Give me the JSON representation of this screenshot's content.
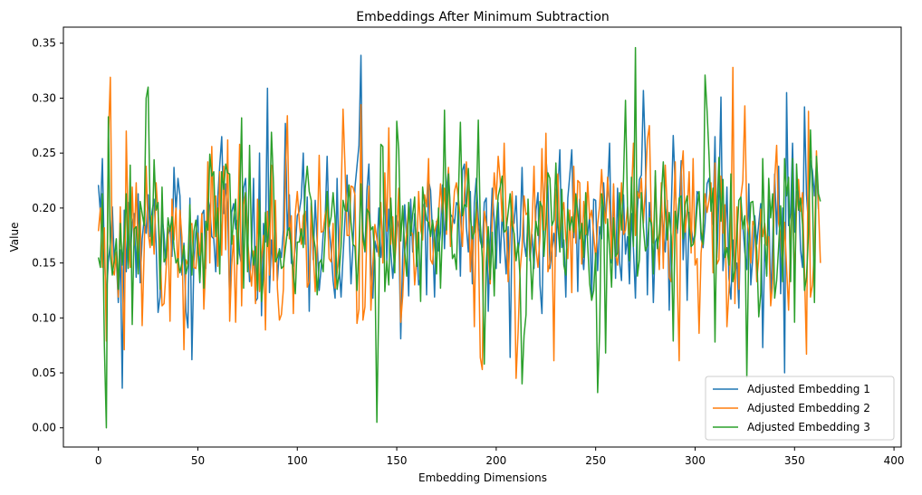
{
  "chart_data": {
    "type": "line",
    "title": "Embeddings After Minimum Subtraction",
    "xlabel": "Embedding Dimensions",
    "ylabel": "Value",
    "xlim": [
      -17.6,
      403.6
    ],
    "ylim": [
      -0.0175,
      0.3646
    ],
    "xticks": [
      0,
      50,
      100,
      150,
      200,
      250,
      300,
      350,
      400
    ],
    "yticks": [
      0.0,
      0.05,
      0.1,
      0.15,
      0.2,
      0.25,
      0.3,
      0.35
    ],
    "ytick_labels": [
      "0.00",
      "0.05",
      "0.10",
      "0.15",
      "0.20",
      "0.25",
      "0.30",
      "0.35"
    ],
    "grid": false,
    "legend_position": "bottom-right",
    "n_points": 384,
    "series": [
      {
        "name": "Adjusted Embedding 1",
        "color": "#1f77b4",
        "values": [
          0.221,
          0.196,
          0.245,
          0.154,
          0.119,
          0.151,
          0.168,
          0.201,
          0.15,
          0.154,
          0.114,
          0.162,
          0.036,
          0.198,
          0.142,
          0.205,
          0.153,
          0.186,
          0.195,
          0.137,
          0.213,
          0.132,
          0.172,
          0.19,
          0.177,
          0.212,
          0.174,
          0.197,
          0.208,
          0.168,
          0.105,
          0.119,
          0.192,
          0.176,
          0.148,
          0.175,
          0.183,
          0.156,
          0.237,
          0.197,
          0.227,
          0.211,
          0.139,
          0.168,
          0.106,
          0.091,
          0.209,
          0.062,
          0.151,
          0.178,
          0.193,
          0.132,
          0.194,
          0.198,
          0.145,
          0.209,
          0.201,
          0.174,
          0.172,
          0.142,
          0.209,
          0.239,
          0.265,
          0.195,
          0.222,
          0.198,
          0.113,
          0.196,
          0.204,
          0.181,
          0.189,
          0.158,
          0.148,
          0.218,
          0.227,
          0.172,
          0.133,
          0.161,
          0.227,
          0.115,
          0.118,
          0.25,
          0.102,
          0.186,
          0.169,
          0.309,
          0.123,
          0.171,
          0.142,
          0.197,
          0.134,
          0.163,
          0.155,
          0.18,
          0.277,
          0.175,
          0.212,
          0.15,
          0.147,
          0.164,
          0.193,
          0.197,
          0.209,
          0.25,
          0.167,
          0.21,
          0.106,
          0.205,
          0.153,
          0.207,
          0.168,
          0.125,
          0.146,
          0.176,
          0.19,
          0.247,
          0.181,
          0.162,
          0.134,
          0.118,
          0.227,
          0.148,
          0.119,
          0.156,
          0.191,
          0.23,
          0.182,
          0.131,
          0.166,
          0.219,
          0.238,
          0.257,
          0.339,
          0.179,
          0.16,
          0.216,
          0.24,
          0.15,
          0.118,
          0.17,
          0.16,
          0.2,
          0.155,
          0.173,
          0.214,
          0.152,
          0.199,
          0.16,
          0.136,
          0.16,
          0.193,
          0.182,
          0.081,
          0.157,
          0.203,
          0.171,
          0.12,
          0.208,
          0.16,
          0.195,
          0.166,
          0.13,
          0.137,
          0.201,
          0.205,
          0.121,
          0.225,
          0.216,
          0.177,
          0.119,
          0.188,
          0.161,
          0.178,
          0.221,
          0.163,
          0.217,
          0.235,
          0.194,
          0.192,
          0.186,
          0.205,
          0.202,
          0.138,
          0.234,
          0.24,
          0.183,
          0.16,
          0.215,
          0.131,
          0.205,
          0.227,
          0.191,
          0.17,
          0.164,
          0.205,
          0.209,
          0.106,
          0.172,
          0.218,
          0.188,
          0.145,
          0.205,
          0.15,
          0.196,
          0.17,
          0.14,
          0.183,
          0.064,
          0.188,
          0.186,
          0.211,
          0.16,
          0.175,
          0.237,
          0.169,
          0.156,
          0.19,
          0.152,
          0.176,
          0.145,
          0.198,
          0.214,
          0.13,
          0.104,
          0.199,
          0.247,
          0.219,
          0.145,
          0.16,
          0.177,
          0.156,
          0.215,
          0.253,
          0.164,
          0.171,
          0.119,
          0.209,
          0.23,
          0.253,
          0.173,
          0.213,
          0.124,
          0.208,
          0.163,
          0.144,
          0.177,
          0.175,
          0.193,
          0.117,
          0.208,
          0.207,
          0.143,
          0.183,
          0.172,
          0.223,
          0.188,
          0.215,
          0.259,
          0.15,
          0.22,
          0.136,
          0.218,
          0.151,
          0.134,
          0.212,
          0.158,
          0.174,
          0.131,
          0.195,
          0.163,
          0.118,
          0.199,
          0.226,
          0.23,
          0.307,
          0.249,
          0.121,
          0.205,
          0.183,
          0.114,
          0.169,
          0.174,
          0.148,
          0.205,
          0.176,
          0.16,
          0.207,
          0.107,
          0.197,
          0.266,
          0.22,
          0.177,
          0.2,
          0.243,
          0.153,
          0.198,
          0.116,
          0.196,
          0.184,
          0.168,
          0.178,
          0.215,
          0.212,
          0.172,
          0.164,
          0.186,
          0.222,
          0.227,
          0.203,
          0.185,
          0.265,
          0.155,
          0.213,
          0.301,
          0.143,
          0.167,
          0.219,
          0.136,
          0.117,
          0.171,
          0.141,
          0.15,
          0.109,
          0.198,
          0.184,
          0.16,
          0.144,
          0.222,
          0.13,
          0.155,
          0.193,
          0.167,
          0.186,
          0.204,
          0.073,
          0.167,
          0.14,
          0.208,
          0.116,
          0.17,
          0.231,
          0.176,
          0.238,
          0.122,
          0.2,
          0.05,
          0.305,
          0.184,
          0.195,
          0.259,
          0.178,
          0.213,
          0.219,
          0.162,
          0.146,
          0.292,
          0.212,
          0.185,
          0.243,
          0.234,
          0.211,
          0.241,
          0.199
        ],
        "note_none": ""
      },
      {
        "name": "Adjusted Embedding 2",
        "color": "#ff7f0e",
        "values": [
          0.179,
          0.2,
          0.146,
          0.182,
          0.079,
          0.262,
          0.319,
          0.145,
          0.139,
          0.16,
          0.119,
          0.201,
          0.136,
          0.071,
          0.27,
          0.175,
          0.146,
          0.219,
          0.166,
          0.223,
          0.159,
          0.197,
          0.093,
          0.16,
          0.238,
          0.178,
          0.164,
          0.193,
          0.158,
          0.223,
          0.195,
          0.166,
          0.111,
          0.113,
          0.143,
          0.182,
          0.097,
          0.208,
          0.171,
          0.2,
          0.137,
          0.198,
          0.173,
          0.071,
          0.153,
          0.148,
          0.184,
          0.186,
          0.146,
          0.145,
          0.177,
          0.157,
          0.195,
          0.108,
          0.15,
          0.242,
          0.15,
          0.256,
          0.173,
          0.211,
          0.147,
          0.233,
          0.157,
          0.238,
          0.162,
          0.262,
          0.097,
          0.147,
          0.175,
          0.096,
          0.176,
          0.258,
          0.111,
          0.203,
          0.214,
          0.173,
          0.147,
          0.129,
          0.161,
          0.113,
          0.208,
          0.124,
          0.155,
          0.175,
          0.089,
          0.197,
          0.139,
          0.239,
          0.134,
          0.207,
          0.127,
          0.098,
          0.103,
          0.126,
          0.23,
          0.284,
          0.172,
          0.193,
          0.104,
          0.195,
          0.215,
          0.188,
          0.167,
          0.193,
          0.197,
          0.128,
          0.133,
          0.202,
          0.159,
          0.124,
          0.167,
          0.248,
          0.178,
          0.179,
          0.194,
          0.202,
          0.154,
          0.151,
          0.186,
          0.127,
          0.141,
          0.163,
          0.209,
          0.29,
          0.237,
          0.175,
          0.175,
          0.22,
          0.219,
          0.212,
          0.095,
          0.108,
          0.294,
          0.098,
          0.11,
          0.18,
          0.22,
          0.107,
          0.149,
          0.185,
          0.172,
          0.156,
          0.205,
          0.15,
          0.232,
          0.179,
          0.273,
          0.167,
          0.192,
          0.15,
          0.177,
          0.218,
          0.096,
          0.12,
          0.161,
          0.178,
          0.202,
          0.179,
          0.176,
          0.13,
          0.154,
          0.215,
          0.181,
          0.171,
          0.212,
          0.201,
          0.245,
          0.153,
          0.149,
          0.178,
          0.186,
          0.193,
          0.222,
          0.195,
          0.218,
          0.176,
          0.237,
          0.165,
          0.186,
          0.215,
          0.223,
          0.208,
          0.192,
          0.165,
          0.213,
          0.242,
          0.211,
          0.142,
          0.183,
          0.092,
          0.205,
          0.176,
          0.064,
          0.053,
          0.197,
          0.186,
          0.16,
          0.131,
          0.19,
          0.232,
          0.208,
          0.247,
          0.226,
          0.188,
          0.259,
          0.187,
          0.133,
          0.175,
          0.215,
          0.165,
          0.045,
          0.087,
          0.143,
          0.164,
          0.211,
          0.194,
          0.196,
          0.155,
          0.182,
          0.238,
          0.163,
          0.146,
          0.174,
          0.254,
          0.18,
          0.268,
          0.142,
          0.15,
          0.184,
          0.061,
          0.212,
          0.231,
          0.171,
          0.194,
          0.205,
          0.172,
          0.154,
          0.198,
          0.123,
          0.238,
          0.168,
          0.225,
          0.223,
          0.149,
          0.206,
          0.176,
          0.224,
          0.19,
          0.198,
          0.176,
          0.154,
          0.185,
          0.202,
          0.235,
          0.202,
          0.186,
          0.228,
          0.202,
          0.154,
          0.222,
          0.158,
          0.148,
          0.179,
          0.223,
          0.176,
          0.18,
          0.201,
          0.176,
          0.211,
          0.259,
          0.175,
          0.215,
          0.209,
          0.227,
          0.186,
          0.218,
          0.262,
          0.275,
          0.19,
          0.168,
          0.229,
          0.173,
          0.144,
          0.223,
          0.145,
          0.239,
          0.2,
          0.137,
          0.133,
          0.18,
          0.242,
          0.138,
          0.061,
          0.231,
          0.252,
          0.178,
          0.197,
          0.233,
          0.159,
          0.245,
          0.148,
          0.154,
          0.086,
          0.159,
          0.181,
          0.213,
          0.196,
          0.207,
          0.223,
          0.141,
          0.241,
          0.149,
          0.153,
          0.229,
          0.177,
          0.203,
          0.092,
          0.124,
          0.17,
          0.328,
          0.113,
          0.201,
          0.126,
          0.21,
          0.225,
          0.293,
          0.19,
          0.177,
          0.15,
          0.188,
          0.183,
          0.133,
          0.154,
          0.199,
          0.174,
          0.186,
          0.166,
          0.174,
          0.111,
          0.131,
          0.226,
          0.257,
          0.186,
          0.176,
          0.142,
          0.187,
          0.145,
          0.107,
          0.172,
          0.211,
          0.133,
          0.2,
          0.226,
          0.197,
          0.214,
          0.142,
          0.067,
          0.288,
          0.119,
          0.13,
          0.163,
          0.252,
          0.203,
          0.15
        ],
        "note_none": ""
      },
      {
        "name": "Adjusted Embedding 3",
        "color": "#2ca02c",
        "values": [
          0.155,
          0.146,
          0.213,
          0.075,
          0.0,
          0.283,
          0.158,
          0.139,
          0.153,
          0.172,
          0.126,
          0.186,
          0.148,
          0.176,
          0.213,
          0.145,
          0.239,
          0.094,
          0.181,
          0.183,
          0.14,
          0.206,
          0.195,
          0.184,
          0.3,
          0.31,
          0.197,
          0.166,
          0.244,
          0.198,
          0.205,
          0.126,
          0.219,
          0.151,
          0.155,
          0.191,
          0.179,
          0.192,
          0.164,
          0.15,
          0.154,
          0.141,
          0.15,
          0.166,
          0.14,
          0.148,
          0.203,
          0.139,
          0.179,
          0.189,
          0.162,
          0.133,
          0.177,
          0.127,
          0.188,
          0.18,
          0.249,
          0.229,
          0.233,
          0.174,
          0.2,
          0.14,
          0.233,
          0.217,
          0.24,
          0.232,
          0.231,
          0.167,
          0.19,
          0.208,
          0.149,
          0.203,
          0.282,
          0.127,
          0.214,
          0.142,
          0.257,
          0.165,
          0.148,
          0.165,
          0.125,
          0.207,
          0.115,
          0.137,
          0.196,
          0.165,
          0.188,
          0.269,
          0.224,
          0.151,
          0.155,
          0.162,
          0.145,
          0.147,
          0.163,
          0.179,
          0.182,
          0.163,
          0.14,
          0.122,
          0.169,
          0.169,
          0.181,
          0.164,
          0.218,
          0.238,
          0.215,
          0.207,
          0.176,
          0.164,
          0.121,
          0.15,
          0.153,
          0.142,
          0.175,
          0.215,
          0.183,
          0.192,
          0.214,
          0.19,
          0.126,
          0.14,
          0.165,
          0.207,
          0.198,
          0.197,
          0.221,
          0.187,
          0.167,
          0.165,
          0.125,
          0.164,
          0.222,
          0.172,
          0.161,
          0.199,
          0.196,
          0.18,
          0.183,
          0.152,
          0.005,
          0.12,
          0.258,
          0.256,
          0.124,
          0.152,
          0.13,
          0.209,
          0.17,
          0.141,
          0.279,
          0.253,
          0.17,
          0.202,
          0.161,
          0.138,
          0.205,
          0.175,
          0.194,
          0.21,
          0.147,
          0.178,
          0.115,
          0.219,
          0.202,
          0.189,
          0.187,
          0.174,
          0.189,
          0.173,
          0.14,
          0.2,
          0.127,
          0.182,
          0.289,
          0.18,
          0.231,
          0.195,
          0.154,
          0.158,
          0.144,
          0.212,
          0.278,
          0.193,
          0.203,
          0.201,
          0.236,
          0.194,
          0.172,
          0.178,
          0.201,
          0.28,
          0.185,
          0.155,
          0.058,
          0.151,
          0.183,
          0.135,
          0.178,
          0.12,
          0.187,
          0.211,
          0.219,
          0.229,
          0.178,
          0.18,
          0.196,
          0.213,
          0.184,
          0.177,
          0.152,
          0.168,
          0.136,
          0.04,
          0.084,
          0.103,
          0.208,
          0.164,
          0.117,
          0.16,
          0.188,
          0.175,
          0.206,
          0.201,
          0.156,
          0.186,
          0.232,
          0.227,
          0.184,
          0.189,
          0.241,
          0.186,
          0.16,
          0.217,
          0.148,
          0.139,
          0.199,
          0.18,
          0.192,
          0.178,
          0.212,
          0.197,
          0.172,
          0.186,
          0.155,
          0.214,
          0.166,
          0.131,
          0.116,
          0.125,
          0.159,
          0.032,
          0.087,
          0.213,
          0.199,
          0.068,
          0.19,
          0.163,
          0.128,
          0.191,
          0.156,
          0.159,
          0.214,
          0.18,
          0.226,
          0.298,
          0.203,
          0.152,
          0.228,
          0.165,
          0.346,
          0.138,
          0.153,
          0.214,
          0.182,
          0.161,
          0.166,
          0.191,
          0.186,
          0.14,
          0.234,
          0.163,
          0.177,
          0.21,
          0.242,
          0.199,
          0.171,
          0.196,
          0.174,
          0.079,
          0.197,
          0.181,
          0.209,
          0.211,
          0.172,
          0.203,
          0.211,
          0.183,
          0.165,
          0.167,
          0.175,
          0.201,
          0.215,
          0.178,
          0.167,
          0.321,
          0.289,
          0.248,
          0.197,
          0.218,
          0.078,
          0.197,
          0.246,
          0.188,
          0.226,
          0.155,
          0.164,
          0.148,
          0.231,
          0.133,
          0.144,
          0.175,
          0.207,
          0.21,
          0.181,
          0.193,
          0.046,
          0.167,
          0.205,
          0.206,
          0.183,
          0.161,
          0.101,
          0.122,
          0.245,
          0.174,
          0.138,
          0.227,
          0.191,
          0.213,
          0.118,
          0.134,
          0.165,
          0.202,
          0.133,
          0.245,
          0.211,
          0.228,
          0.133,
          0.245,
          0.096,
          0.24,
          0.198,
          0.209,
          0.185,
          0.125,
          0.137,
          0.176,
          0.271,
          0.213,
          0.114,
          0.247,
          0.213,
          0.206
        ],
        "note_none": ""
      }
    ]
  }
}
